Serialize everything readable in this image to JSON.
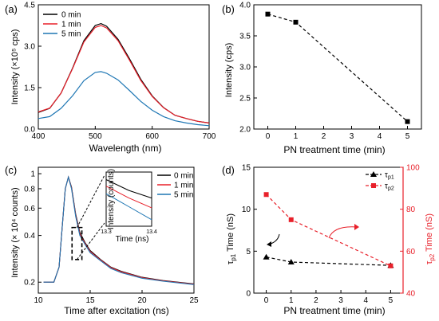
{
  "chart_data": [
    {
      "panel": "(a)",
      "type": "line",
      "xlabel": "Wavelength (nm)",
      "ylabel": "Intensity (×10⁵ cps)",
      "xlim": [
        400,
        700
      ],
      "ylim": [
        0,
        4.5
      ],
      "xticks": [
        "400",
        "500",
        "600",
        "700"
      ],
      "yticks": [
        "0.0",
        "1.5",
        "3.0",
        "4.5"
      ],
      "legend_position": "top-left",
      "series": [
        {
          "name": "0 min",
          "color": "#000000",
          "x": [
            400,
            420,
            440,
            460,
            480,
            500,
            510,
            520,
            540,
            560,
            580,
            600,
            620,
            640,
            660,
            680,
            700
          ],
          "y": [
            0.6,
            0.75,
            1.3,
            2.2,
            3.2,
            3.75,
            3.82,
            3.72,
            3.25,
            2.55,
            1.8,
            1.2,
            0.78,
            0.5,
            0.38,
            0.28,
            0.22
          ]
        },
        {
          "name": "1 min",
          "color": "#e8202a",
          "x": [
            400,
            420,
            440,
            460,
            480,
            500,
            510,
            520,
            540,
            560,
            580,
            600,
            620,
            640,
            660,
            680,
            700
          ],
          "y": [
            0.62,
            0.76,
            1.3,
            2.18,
            3.15,
            3.68,
            3.75,
            3.66,
            3.2,
            2.5,
            1.76,
            1.18,
            0.77,
            0.5,
            0.38,
            0.28,
            0.22
          ]
        },
        {
          "name": "5 min",
          "color": "#1f77b4",
          "x": [
            400,
            420,
            440,
            460,
            480,
            500,
            510,
            520,
            540,
            560,
            580,
            600,
            620,
            640,
            660,
            680,
            700
          ],
          "y": [
            0.38,
            0.45,
            0.75,
            1.2,
            1.75,
            2.05,
            2.08,
            2.02,
            1.78,
            1.4,
            1.0,
            0.68,
            0.45,
            0.3,
            0.22,
            0.16,
            0.12
          ]
        }
      ]
    },
    {
      "panel": "(b)",
      "type": "scatter",
      "xlabel": "PN treatment time (min)",
      "ylabel": "Intensity (cps)",
      "xlim": [
        -0.5,
        5.5
      ],
      "ylim": [
        2.0,
        4.0
      ],
      "xticks": [
        "0",
        "1",
        "2",
        "3",
        "4",
        "5"
      ],
      "yticks": [
        "2.0",
        "2.5",
        "3.0",
        "3.5",
        "4.0"
      ],
      "series": [
        {
          "x": [
            0,
            1,
            5
          ],
          "y": [
            3.85,
            3.72,
            2.12
          ],
          "color": "#000000",
          "line": "dashed"
        }
      ]
    },
    {
      "panel": "(c)",
      "type": "line",
      "xlabel": "Time after excitation (ns)",
      "ylabel": "Intensity (× 10⁴ counts)",
      "xlim": [
        10,
        25
      ],
      "ylim": [
        0.17,
        1.1
      ],
      "yscale": "log",
      "xticks": [
        "10",
        "15",
        "20",
        "25"
      ],
      "yticks": [
        "0.2",
        "0.4",
        "0.6",
        "0.8",
        "1"
      ],
      "legend_position": "top-right",
      "series": [
        {
          "name": "0 min",
          "color": "#000000",
          "x": [
            10.5,
            11.5,
            12.0,
            12.3,
            12.6,
            12.9,
            13.2,
            13.6,
            14.0,
            14.5,
            15.0,
            16.0,
            17.0,
            18.0,
            20.0,
            22.0,
            25.0
          ],
          "y": [
            0.2,
            0.2,
            0.25,
            0.45,
            0.8,
            0.95,
            0.82,
            0.55,
            0.42,
            0.36,
            0.32,
            0.28,
            0.25,
            0.235,
            0.215,
            0.205,
            0.195
          ]
        },
        {
          "name": "1 min",
          "color": "#e8202a",
          "x": [
            10.5,
            11.5,
            12.0,
            12.3,
            12.6,
            12.9,
            13.2,
            13.6,
            14.0,
            14.5,
            15.0,
            16.0,
            17.0,
            18.0,
            20.0,
            22.0,
            25.0
          ],
          "y": [
            0.2,
            0.2,
            0.25,
            0.45,
            0.8,
            0.95,
            0.81,
            0.54,
            0.41,
            0.355,
            0.315,
            0.278,
            0.248,
            0.233,
            0.214,
            0.204,
            0.194
          ]
        },
        {
          "name": "5 min",
          "color": "#1f77b4",
          "x": [
            10.5,
            11.5,
            12.0,
            12.3,
            12.6,
            12.9,
            13.2,
            13.6,
            14.0,
            14.5,
            15.0,
            16.0,
            17.0,
            18.0,
            20.0,
            22.0,
            25.0
          ],
          "y": [
            0.2,
            0.2,
            0.25,
            0.45,
            0.8,
            0.95,
            0.8,
            0.53,
            0.4,
            0.35,
            0.31,
            0.275,
            0.245,
            0.23,
            0.212,
            0.203,
            0.193
          ]
        }
      ],
      "inset": {
        "xlabel": "Time (ns)",
        "ylabel": "Intensity (counts)",
        "xticks": [
          "13.3",
          "13.4"
        ],
        "xlim": [
          13.3,
          13.4
        ],
        "ylim": [
          0,
          1
        ],
        "series": [
          {
            "color": "#000000",
            "x": [
              13.3,
              13.35,
              13.4
            ],
            "y": [
              0.86,
              0.66,
              0.52
            ]
          },
          {
            "color": "#e8202a",
            "x": [
              13.3,
              13.35,
              13.4
            ],
            "y": [
              0.74,
              0.52,
              0.34
            ]
          },
          {
            "color": "#1f77b4",
            "x": [
              13.3,
              13.35,
              13.4
            ],
            "y": [
              0.6,
              0.36,
              0.12
            ]
          }
        ]
      }
    },
    {
      "panel": "(d)",
      "type": "scatter",
      "xlabel": "PN treatment time (min)",
      "ylabel_left": "τp1 Time (nS)",
      "ylabel_right": "τp2 Time (nS)",
      "xlim": [
        -0.5,
        5.5
      ],
      "ylim_left": [
        0,
        15
      ],
      "ylim_right": [
        40,
        100
      ],
      "xticks": [
        "0",
        "1",
        "2",
        "3",
        "4",
        "5"
      ],
      "yticks_left": [
        "0",
        "5",
        "10",
        "15"
      ],
      "yticks_right": [
        "40",
        "60",
        "80",
        "100"
      ],
      "legend_position": "top-right",
      "series": [
        {
          "name": "τp1",
          "axis": "left",
          "color": "#000000",
          "marker": "triangle",
          "line": "dashed",
          "x": [
            0,
            1,
            5
          ],
          "y": [
            4.3,
            3.7,
            3.3
          ]
        },
        {
          "name": "τp2",
          "axis": "right",
          "color": "#e8202a",
          "marker": "square",
          "line": "dashed",
          "x": [
            0,
            1,
            5
          ],
          "y": [
            87,
            75,
            53
          ]
        }
      ]
    }
  ],
  "labels": {
    "a": "(a)",
    "b": "(b)",
    "c": "(c)",
    "d": "(d)",
    "a_ylabel": "Intensity (×10⁵ cps)",
    "a_xlabel": "Wavelength (nm)",
    "b_ylabel": "Intensity (cps)",
    "b_xlabel": "PN treatment time (min)",
    "c_ylabel": "Intensity (× 10⁴ counts)",
    "c_xlabel": "Time after excitation (ns)",
    "c_inset_ylabel": "Intensity (counts)",
    "c_inset_xlabel": "Time (ns)",
    "d_xlabel": "PN treatment time (min)",
    "d_ylabel_left_sym": "τ",
    "d_ylabel_left_sub": "p1",
    "d_ylabel_left_rest": " Time (nS)",
    "d_ylabel_right_sym": "τ",
    "d_ylabel_right_sub": "p2",
    "d_ylabel_right_rest": " Time (nS)",
    "d_leg1_sym": "τ",
    "d_leg1_sub": "p1",
    "d_leg2_sym": "τ",
    "d_leg2_sub": "p2"
  },
  "colors": {
    "black": "#000000",
    "red": "#e8202a",
    "blue": "#1f77b4"
  }
}
